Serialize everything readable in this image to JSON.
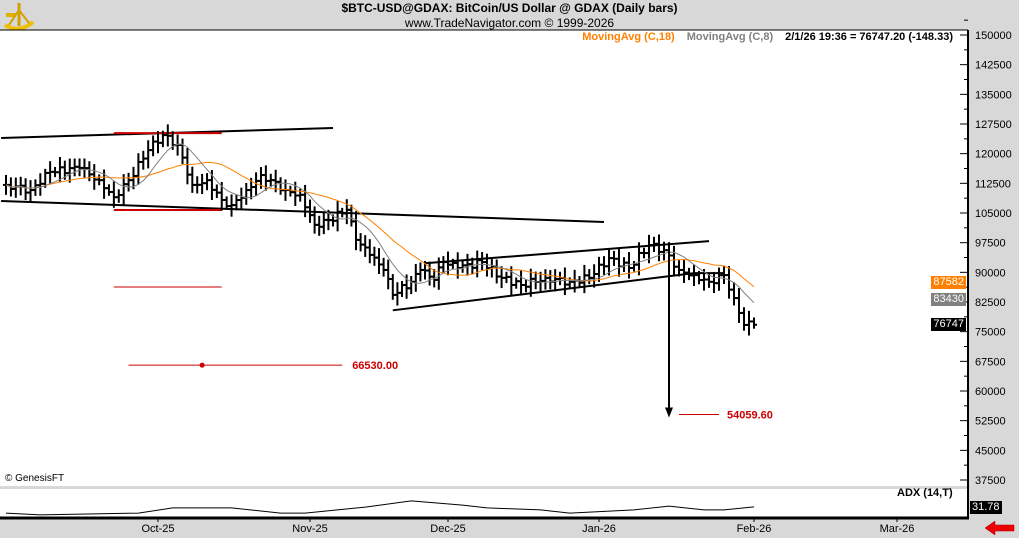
{
  "header": {
    "title": "$BTC-USD@GDAX:  BitCoin/US Dollar @ GDAX  (Daily bars)",
    "subtitle": "www.TradeNavigator.com © 1999-2026",
    "logo": "sextant-logo"
  },
  "legend": {
    "ma18": "MovingAvg (C,18)",
    "ma8": "MovingAvg (C,8)",
    "readout": "2/1/26 19:36 = 76747.20 (-148.33)"
  },
  "colors": {
    "ma18": "#ff8000",
    "ma8": "#808080",
    "annotation": "#cc0000",
    "bars": "#000000",
    "background": "#ffffff",
    "frame": "#d8d8d8"
  },
  "copyright": "© GenesisFT",
  "badges": {
    "ma18": "87582",
    "ma8": "83430",
    "last": "76747",
    "adx": "31.78"
  },
  "adx_label": "ADX (14,T)",
  "nav_arrow": "red-left-arrow-icon",
  "annotations": {
    "target1": {
      "label": "66530.00",
      "price": 66530,
      "from": "2025-09-25",
      "to": "2025-11-08",
      "dot": "2025-10-10"
    },
    "target2": {
      "label": "54059.60",
      "price": 54059.6,
      "from": "2026-01-17",
      "to": "2026-01-25"
    },
    "arrow": {
      "date": "2026-01-15",
      "from_price": 97000,
      "to_price": 54059.6
    },
    "red_lines": [
      {
        "from": "2025-09-22",
        "to": "2025-10-14",
        "price": 125200
      },
      {
        "from": "2025-09-22",
        "to": "2025-10-14",
        "price": 105760
      },
      {
        "from": "2025-09-22",
        "to": "2025-10-14",
        "price": 86300
      }
    ],
    "trend_lines": [
      {
        "from": [
          "2025-08-30",
          123960
        ],
        "to": [
          "2025-11-06",
          126490
        ]
      },
      {
        "from": [
          "2025-08-30",
          108030
        ],
        "to": [
          "2026-01-02",
          102730
        ]
      },
      {
        "from": [
          "2025-11-26",
          92300
        ],
        "to": [
          "2026-01-23",
          97900
        ]
      },
      {
        "from": [
          "2025-11-19",
          80400
        ],
        "to": [
          "2026-01-20",
          89800
        ]
      },
      {
        "from": [
          "2026-01-20",
          89800
        ],
        "to": [
          "2026-01-26",
          89800
        ]
      }
    ]
  },
  "chart_data": {
    "type": "ohlc-bar",
    "title": "$BTC-USD@GDAX:  BitCoin/US Dollar @ GDAX  (Daily bars)",
    "x_ticks": [
      "Oct-25",
      "Nov-25",
      "Dec-25",
      "Jan-26",
      "Feb-26",
      "Mar-26"
    ],
    "y_ticks": [
      150000,
      142500,
      135000,
      127500,
      120000,
      112500,
      105000,
      97500,
      90000,
      82500,
      75000,
      67500,
      60000,
      52500,
      45000,
      37500
    ],
    "ylim": [
      37500,
      150000
    ],
    "close_series": [
      [
        "2025-08-31",
        112100
      ],
      [
        "2025-09-05",
        110800
      ],
      [
        "2025-09-09",
        115400
      ],
      [
        "2025-09-15",
        116400
      ],
      [
        "2025-09-19",
        113300
      ],
      [
        "2025-09-22",
        109000
      ],
      [
        "2025-09-25",
        113300
      ],
      [
        "2025-09-29",
        120900
      ],
      [
        "2025-10-02",
        124700
      ],
      [
        "2025-10-05",
        122200
      ],
      [
        "2025-10-08",
        112100
      ],
      [
        "2025-10-11",
        113300
      ],
      [
        "2025-10-14",
        108300
      ],
      [
        "2025-10-16",
        107000
      ],
      [
        "2025-10-19",
        110800
      ],
      [
        "2025-10-22",
        114600
      ],
      [
        "2025-10-24",
        113300
      ],
      [
        "2025-10-27",
        110800
      ],
      [
        "2025-10-30",
        109600
      ],
      [
        "2025-11-02",
        102000
      ],
      [
        "2025-11-05",
        103200
      ],
      [
        "2025-11-09",
        105800
      ],
      [
        "2025-11-11",
        98200
      ],
      [
        "2025-11-14",
        94400
      ],
      [
        "2025-11-17",
        90600
      ],
      [
        "2025-11-19",
        84300
      ],
      [
        "2025-11-23",
        87600
      ],
      [
        "2025-11-25",
        90600
      ],
      [
        "2025-11-28",
        88100
      ],
      [
        "2025-11-30",
        92600
      ],
      [
        "2025-12-03",
        91100
      ],
      [
        "2025-12-08",
        92600
      ],
      [
        "2025-12-12",
        88600
      ],
      [
        "2025-12-16",
        86800
      ],
      [
        "2025-12-21",
        88600
      ],
      [
        "2025-12-26",
        87600
      ],
      [
        "2025-12-30",
        88600
      ],
      [
        "2026-01-03",
        93600
      ],
      [
        "2026-01-07",
        91100
      ],
      [
        "2026-01-11",
        96900
      ],
      [
        "2026-01-14",
        95600
      ],
      [
        "2026-01-17",
        90600
      ],
      [
        "2026-01-20",
        89300
      ],
      [
        "2026-01-23",
        87600
      ],
      [
        "2026-01-26",
        89300
      ],
      [
        "2026-01-28",
        83500
      ],
      [
        "2026-01-30",
        76700
      ],
      [
        "2026-02-01",
        76747.2
      ]
    ],
    "moving_averages": [
      {
        "name": "MovingAvg (C,18)",
        "period": 18
      },
      {
        "name": "MovingAvg (C,8)",
        "period": 8
      }
    ],
    "adx": {
      "name": "ADX (14,T)",
      "values": [
        [
          "2025-08-31",
          14
        ],
        [
          "2025-09-07",
          9
        ],
        [
          "2025-09-27",
          14
        ],
        [
          "2025-10-04",
          29
        ],
        [
          "2025-10-16",
          29
        ],
        [
          "2025-10-26",
          14
        ],
        [
          "2025-10-31",
          14
        ],
        [
          "2025-11-13",
          31
        ],
        [
          "2025-11-23",
          49
        ],
        [
          "2025-12-04",
          37
        ],
        [
          "2025-12-09",
          29
        ],
        [
          "2025-12-20",
          23
        ],
        [
          "2025-12-26",
          14
        ],
        [
          "2026-01-08",
          23
        ],
        [
          "2026-01-15",
          34
        ],
        [
          "2026-01-22",
          23
        ],
        [
          "2026-01-26",
          23
        ],
        [
          "2026-02-01",
          31.78
        ]
      ]
    }
  }
}
